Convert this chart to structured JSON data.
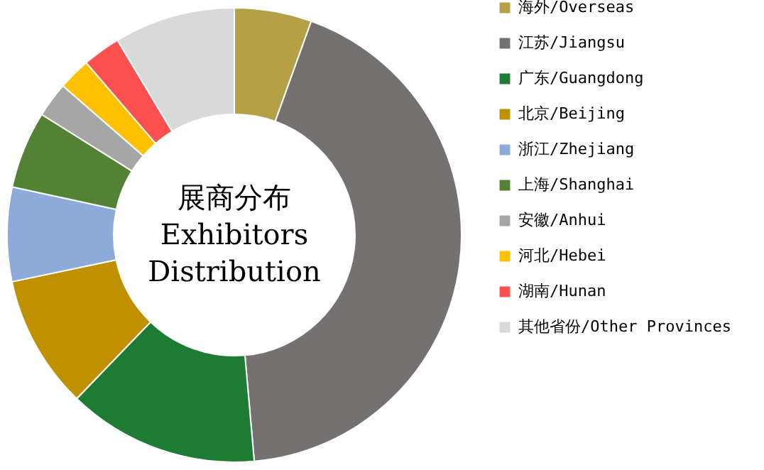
{
  "chart_data": {
    "type": "donut",
    "title": "展商分布\nExhibitors\nDistribution",
    "categories": [
      "海外/Overseas",
      "江苏/Jiangsu",
      "广东/Guangdong",
      "北京/Beijing",
      "浙江/Zhejiang",
      "上海/Shanghai",
      "安徽/Anhui",
      "河北/Hebei",
      "湖南/Hunan",
      "其他省份/Other Provinces"
    ],
    "values": [
      5.5,
      43.1,
      13.6,
      9.5,
      6.7,
      5.5,
      2.5,
      2.3,
      2.7,
      8.6
    ],
    "colors": [
      "#b5a048",
      "#767171",
      "#1e7b34",
      "#bf9000",
      "#8eaadb",
      "#548235",
      "#a6a6a6",
      "#ffc000",
      "#ff5050",
      "#d9d9d9"
    ],
    "legend": "right"
  }
}
